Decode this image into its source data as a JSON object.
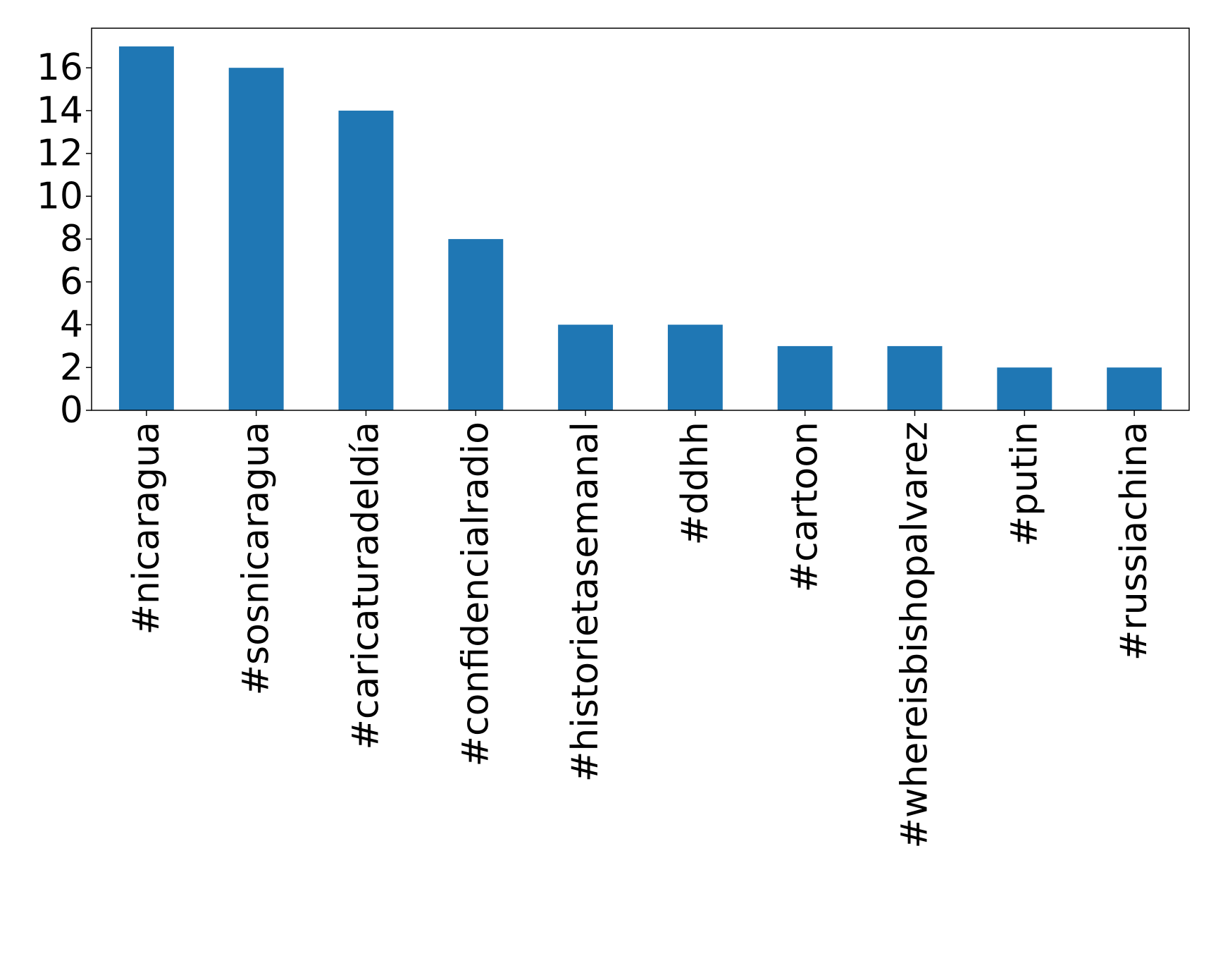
{
  "chart_data": {
    "type": "bar",
    "title": "",
    "xlabel": "",
    "ylabel": "",
    "categories": [
      "#nicaragua",
      "#sosnicaragua",
      "#caricaturadeldía",
      "#confidencialradio",
      "#historietasemanal",
      "#ddhh",
      "#cartoon",
      "#whereisbishopalvarez",
      "#putin",
      "#russiachina"
    ],
    "values": [
      17,
      16,
      14,
      8,
      4,
      4,
      3,
      3,
      2,
      2
    ],
    "ylim": [
      0,
      17.85
    ],
    "yticks": [
      "0",
      "2",
      "4",
      "6",
      "8",
      "10",
      "12",
      "14",
      "16"
    ],
    "grid": false,
    "legend": "none",
    "colors": {
      "bar": "#1f77b4",
      "axis": "#000000",
      "background": "#ffffff"
    }
  }
}
